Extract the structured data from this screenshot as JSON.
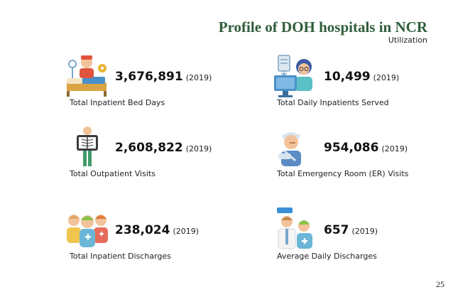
{
  "header": {
    "title": "Profile of DOH hospitals in NCR",
    "subtitle": "Utilization"
  },
  "stats": [
    {
      "value": "3,676,891",
      "year": "(2019)",
      "label": "Total Inpatient Bed Days",
      "icon": "bed-nurse-icon"
    },
    {
      "value": "10,499",
      "year": "(2019)",
      "label": "Total Daily Inpatients Served",
      "icon": "doctor-computer-icon"
    },
    {
      "value": "2,608,822",
      "year": "(2019)",
      "label": "Total Outpatient Visits",
      "icon": "xray-patient-icon"
    },
    {
      "value": "954,086",
      "year": "(2019)",
      "label": "Total Emergency Room (ER) Visits",
      "icon": "injured-patient-icon"
    },
    {
      "value": "238,024",
      "year": "(2019)",
      "label": "Total Inpatient Discharges",
      "icon": "patient-group-icon"
    },
    {
      "value": "657",
      "year": "(2019)",
      "label": "Average Daily Discharges",
      "icon": "doctor-patient-icon"
    }
  ],
  "page_number": "25"
}
